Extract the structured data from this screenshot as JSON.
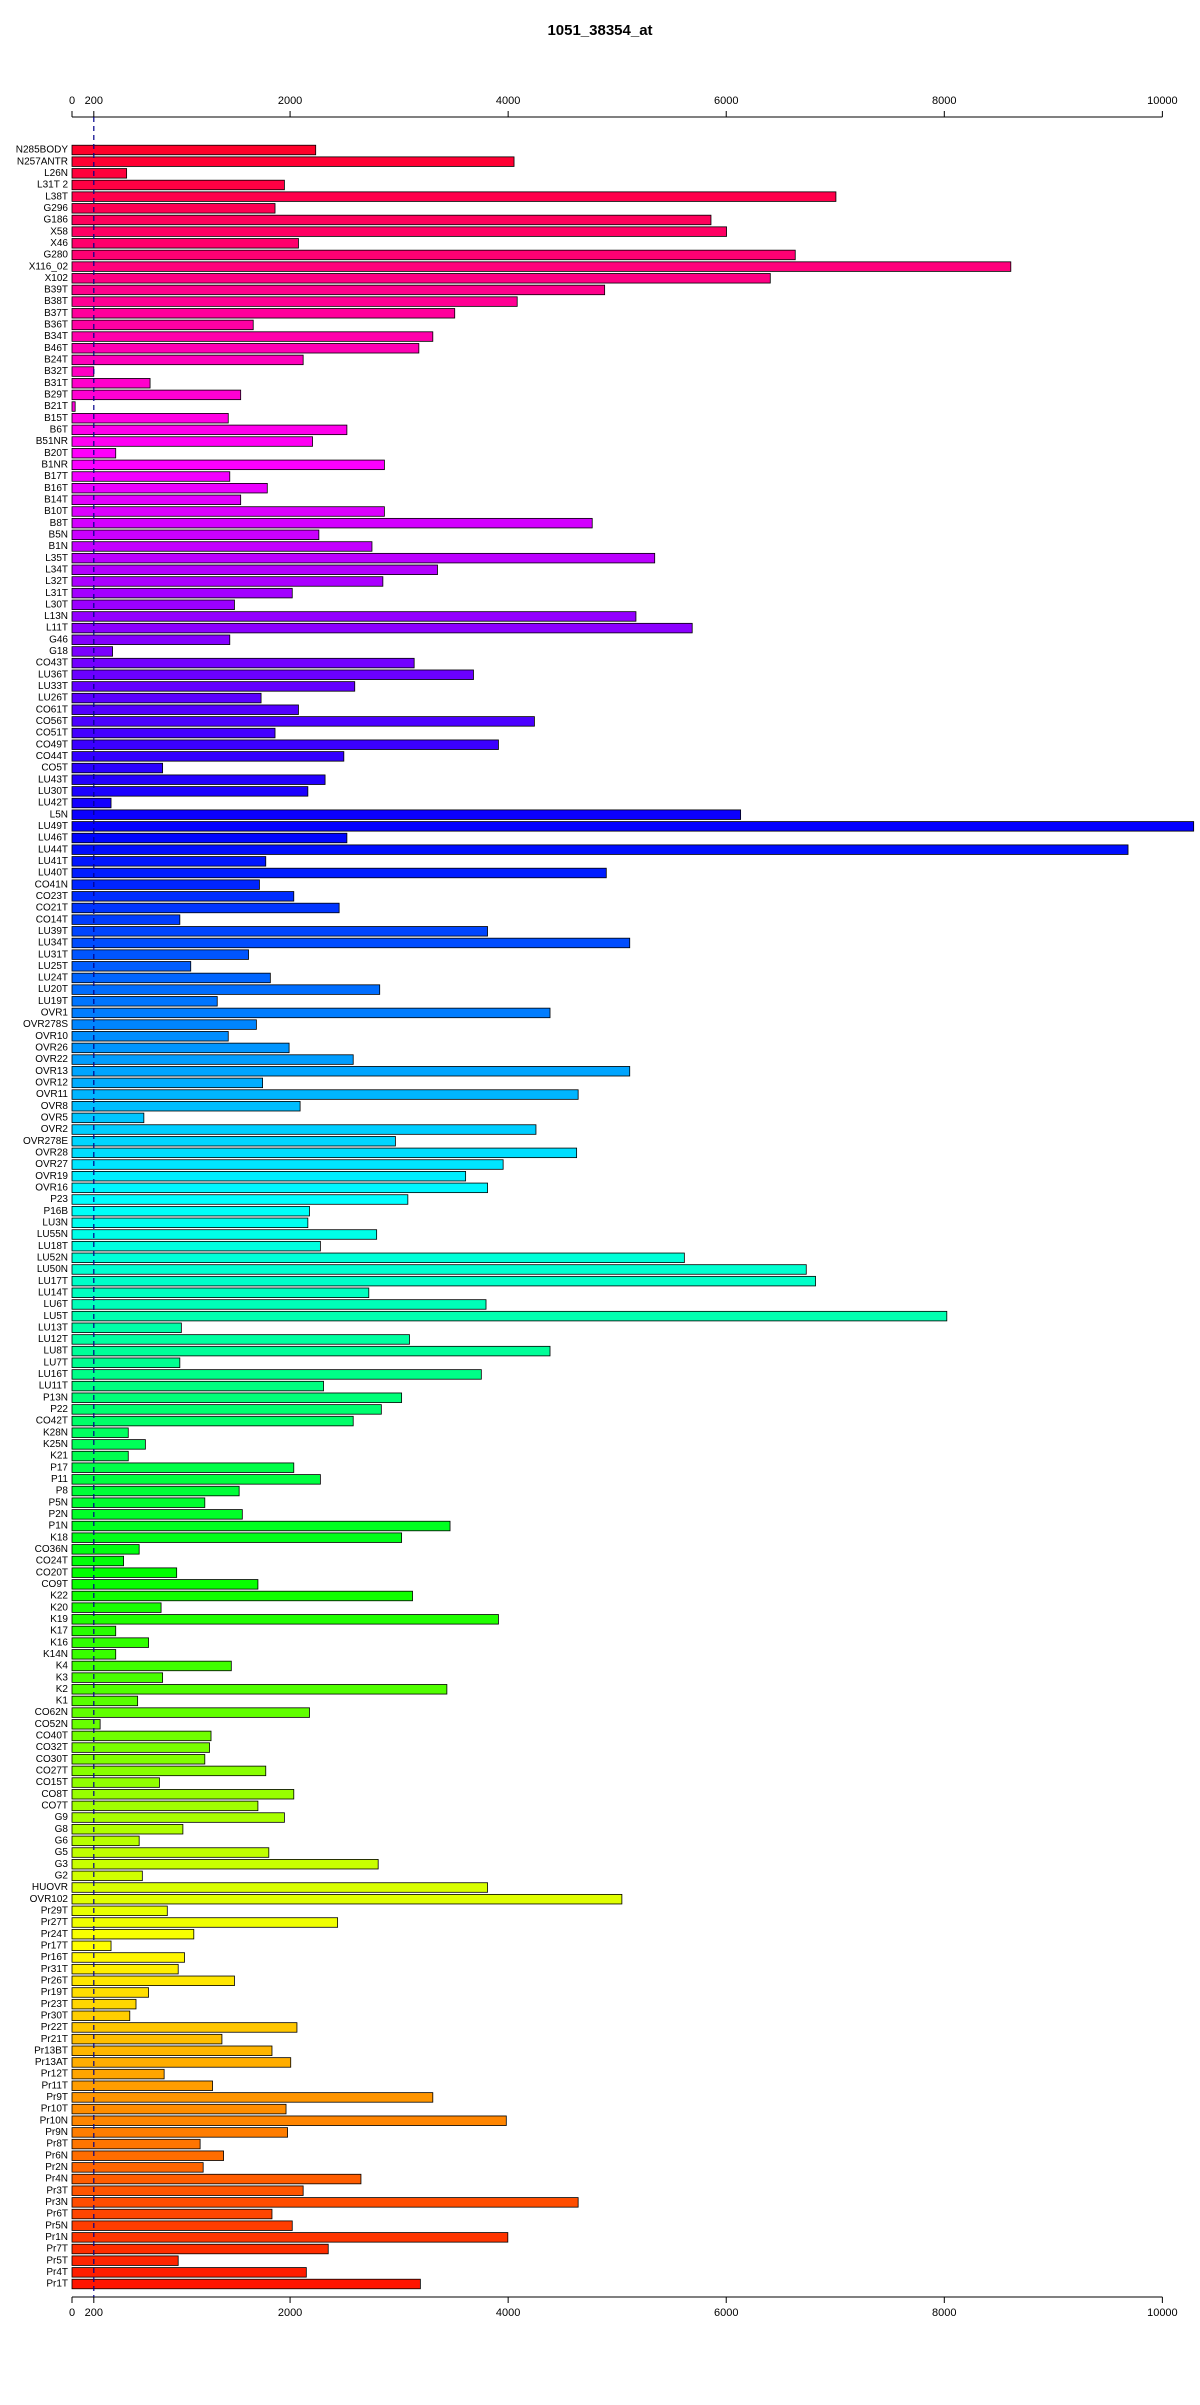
{
  "chart_data": {
    "type": "barh",
    "title": "1051_38354_at",
    "categories": [
      "N285BODY",
      "N257ANTR",
      "L26N",
      "L31T 2",
      "L38T",
      "G296",
      "G186",
      "X58",
      "X46",
      "G280",
      "X116_02",
      "X102",
      "B39T",
      "B38T",
      "B37T",
      "B36T",
      "B34T",
      "B46T",
      "B24T",
      "B32T",
      "B31T",
      "B29T",
      "B21T",
      "B15T",
      "B6T",
      "B51NR",
      "B20T",
      "B1NR",
      "B17T",
      "B16T",
      "B14T",
      "B10T",
      "B8T",
      "B5N",
      "B1N",
      "L35T",
      "L34T",
      "L32T",
      "L31T",
      "L30T",
      "L13N",
      "L11T",
      "G46",
      "G18",
      "CO43T",
      "LU36T",
      "LU33T",
      "LU26T",
      "CO61T",
      "CO56T",
      "CO51T",
      "CO49T",
      "CO44T",
      "CO5T",
      "LU43T",
      "LU30T",
      "LU42T",
      "L5N",
      "LU49T",
      "LU46T",
      "LU44T",
      "LU41T",
      "LU40T",
      "CO41N",
      "CO23T",
      "CO21T",
      "CO14T",
      "LU39T",
      "LU34T",
      "LU31T",
      "LU25T",
      "LU24T",
      "LU20T",
      "LU19T",
      "OVR1",
      "OVR278S",
      "OVR10",
      "OVR26",
      "OVR22",
      "OVR13",
      "OVR12",
      "OVR11",
      "OVR8",
      "OVR5",
      "OVR2",
      "OVR278E",
      "OVR28",
      "OVR27",
      "OVR19",
      "OVR16",
      "P23",
      "P16B",
      "LU3N",
      "LU55N",
      "LU18T",
      "LU52N",
      "LU50N",
      "LU17T",
      "LU14T",
      "LU6T",
      "LU5T",
      "LU13T",
      "LU12T",
      "LU8T",
      "LU7T",
      "LU16T",
      "LU11T",
      "P13N",
      "P22",
      "CO42T",
      "K28N",
      "K25N",
      "K21",
      "P17",
      "P11",
      "P8",
      "P5N",
      "P2N",
      "P1N",
      "K18",
      "CO36N",
      "CO24T",
      "CO20T",
      "CO9T",
      "K22",
      "K20",
      "K19",
      "K17",
      "K16",
      "K14N",
      "K4",
      "K3",
      "K2",
      "K1",
      "CO62N",
      "CO52N",
      "CO40T",
      "CO32T",
      "CO30T",
      "CO27T",
      "CO15T",
      "CO8T",
      "CO7T",
      "G9",
      "G8",
      "G6",
      "G5",
      "G3",
      "G2",
      "HUOVR",
      "OVR102",
      "Pr29T",
      "Pr27T",
      "Pr24T",
      "Pr17T",
      "Pr16T",
      "Pr31T",
      "Pr26T",
      "Pr19T",
      "Pr23T",
      "Pr30T",
      "Pr22T",
      "Pr21T",
      "Pr13BT",
      "Pr13AT",
      "Pr12T",
      "Pr11T",
      "Pr9T",
      "Pr10T",
      "Pr10N",
      "Pr9N",
      "Pr8T",
      "Pr6N",
      "Pr2N",
      "Pr4N",
      "Pr3T",
      "Pr3N",
      "Pr6T",
      "Pr5N",
      "Pr1N",
      "Pr7T",
      "Pr5T",
      "Pr4T",
      "Pr1T"
    ],
    "values": [
      2235,
      4054,
      501,
      1948,
      7006,
      1862,
      5860,
      6003,
      2077,
      6633,
      8610,
      6404,
      4885,
      4083,
      3510,
      1662,
      3309,
      3181,
      2120,
      200,
      716,
      1547,
      29,
      1433,
      2521,
      2206,
      401,
      2865,
      1447,
      1791,
      1547,
      2865,
      4771,
      2264,
      2751,
      5344,
      3352,
      2851,
      2020,
      1490,
      5172,
      5688,
      1447,
      372,
      3138,
      3682,
      2593,
      1734,
      2077,
      4241,
      1862,
      3911,
      2493,
      831,
      2321,
      2163,
      358,
      6132,
      10287,
      2521,
      9685,
      1777,
      4900,
      1719,
      2034,
      2450,
      989,
      3811,
      5115,
      1619,
      1089,
      1819,
      2822,
      1332,
      4384,
      1691,
      1433,
      1991,
      2579,
      5115,
      1748,
      4642,
      2092,
      659,
      4255,
      2966,
      4628,
      3954,
      3610,
      3811,
      3080,
      2178,
      2163,
      2794,
      2278,
      5616,
      6734,
      6819,
      2722,
      3797,
      8023,
      1003,
      3095,
      4384,
      989,
      3754,
      2307,
      3023,
      2837,
      2579,
      516,
      673,
      516,
      2034,
      2278,
      1533,
      1218,
      1562,
      3467,
      3023,
      616,
      473,
      960,
      1705,
      3123,
      817,
      3911,
      401,
      702,
      401,
      1461,
      831,
      3438,
      602,
      2178,
      258,
      1275,
      1261,
      1218,
      1777,
      802,
      2034,
      1705,
      1948,
      1017,
      616,
      1805,
      2808,
      645,
      3811,
      5043,
      874,
      2436,
      1117,
      358,
      1032,
      974,
      1490,
      702,
      587,
      530,
      2063,
      1375,
      1834,
      2006,
      845,
      1289,
      3309,
      1963,
      3983,
      1977,
      1175,
      1390,
      1203,
      2650,
      2120,
      4642,
      1834,
      2020,
      3997,
      2350,
      974,
      2149,
      3195
    ],
    "color_hue_range": [
      350,
      5
    ],
    "xlim": [
      0,
      10290
    ],
    "xticks": [
      0,
      200,
      2000,
      4000,
      6000,
      8000,
      10000
    ],
    "reference_line": 200
  }
}
